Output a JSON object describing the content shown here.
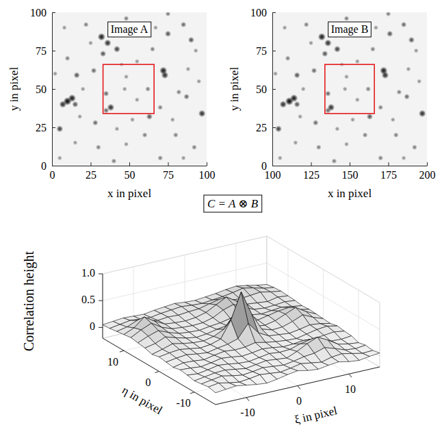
{
  "chart_data": [
    {
      "type": "image",
      "title": "Image A",
      "x_label": "x in pixel",
      "y_label": "y in pixel",
      "xlim": [
        0,
        100
      ],
      "ylim": [
        0,
        100
      ],
      "xticks": [
        0,
        25,
        50,
        75,
        100
      ],
      "yticks": [
        0,
        25,
        50,
        75,
        100
      ],
      "color": "#000000",
      "stars": {
        "x": [
          10,
          13,
          7,
          15,
          32,
          36,
          40,
          42,
          33,
          72,
          73,
          75,
          90,
          97,
          38,
          35,
          5,
          16,
          28,
          35,
          47,
          62,
          48,
          55,
          27,
          10,
          22,
          48,
          75,
          85,
          93,
          82,
          87,
          70,
          63,
          60,
          80,
          92,
          48,
          30,
          15,
          5,
          40,
          70,
          55,
          65,
          20,
          2,
          25,
          58,
          88,
          95,
          52,
          8,
          45,
          67,
          78,
          18,
          42,
          85
        ],
        "y": [
          42,
          44,
          40,
          40,
          84,
          80,
          86,
          76,
          73,
          62,
          59,
          86,
          82,
          34,
          38,
          36,
          24,
          59,
          28,
          47,
          50,
          50,
          58,
          43,
          62,
          70,
          92,
          96,
          99,
          92,
          75,
          48,
          45,
          38,
          32,
          20,
          20,
          12,
          14,
          12,
          15,
          5,
          3,
          5,
          68,
          76,
          50,
          60,
          80,
          88,
          63,
          55,
          30,
          90,
          66,
          90,
          30,
          32,
          24,
          5
        ],
        "brightness": [
          1,
          0.9,
          0.8,
          0.6,
          0.9,
          0.8,
          0.9,
          0.7,
          0.6,
          0.9,
          0.8,
          0.6,
          0.6,
          0.8,
          0.8,
          0.5,
          0.7,
          0.6,
          0.5,
          0.5,
          0.3,
          0.4,
          0.3,
          0.3,
          0.5,
          0.4,
          0.4,
          0.4,
          0.4,
          0.5,
          0.3,
          0.4,
          0.5,
          0.4,
          0.6,
          0.4,
          0.4,
          0.4,
          0.3,
          0.4,
          0.3,
          0.3,
          0.4,
          0.4,
          0.3,
          0.4,
          0.3,
          0.3,
          0.3,
          0.3,
          0.3,
          0.3,
          0.3,
          0.3,
          0.2,
          0.3,
          0.3,
          0.3,
          0.3,
          0.3
        ]
      },
      "box": {
        "x": [
          33,
          66
        ],
        "y": [
          34,
          66
        ],
        "color": "#e41a1c"
      }
    },
    {
      "type": "image",
      "title": "Image B",
      "x_label": "x in pixel",
      "y_label": "y in pixel",
      "xlim": [
        100,
        200
      ],
      "ylim": [
        0,
        100
      ],
      "xticks": [
        100,
        125,
        150,
        175,
        200
      ],
      "yticks": [
        0,
        25,
        50,
        75,
        100
      ],
      "color": "#000000",
      "stars": {
        "x": [
          111,
          114,
          107,
          116,
          132,
          136,
          141,
          142,
          134,
          172,
          173,
          176,
          190,
          197,
          138,
          136,
          104,
          116,
          128,
          136,
          147,
          162,
          148,
          155,
          127,
          110,
          122,
          148,
          175,
          185,
          193,
          182,
          187,
          170,
          163,
          160,
          180,
          192,
          148,
          130,
          115,
          105,
          140,
          170,
          155,
          165,
          120,
          102,
          125,
          158,
          188,
          195,
          152,
          108,
          145,
          167,
          178,
          118,
          142,
          185
        ],
        "y": [
          42,
          44,
          40,
          40,
          84,
          80,
          86,
          76,
          73,
          62,
          59,
          86,
          82,
          34,
          38,
          36,
          24,
          59,
          28,
          47,
          50,
          50,
          58,
          43,
          62,
          70,
          92,
          96,
          99,
          92,
          75,
          48,
          45,
          38,
          32,
          20,
          20,
          12,
          14,
          12,
          15,
          5,
          3,
          5,
          68,
          76,
          50,
          60,
          80,
          88,
          63,
          55,
          30,
          90,
          66,
          90,
          30,
          32,
          24,
          5
        ],
        "brightness": [
          1,
          0.9,
          0.8,
          0.6,
          0.9,
          0.8,
          0.9,
          0.7,
          0.6,
          0.9,
          0.8,
          0.6,
          0.6,
          0.8,
          0.8,
          0.5,
          0.7,
          0.6,
          0.5,
          0.5,
          0.3,
          0.4,
          0.3,
          0.3,
          0.5,
          0.4,
          0.4,
          0.4,
          0.4,
          0.5,
          0.3,
          0.4,
          0.5,
          0.4,
          0.6,
          0.4,
          0.4,
          0.4,
          0.3,
          0.4,
          0.3,
          0.3,
          0.4,
          0.4,
          0.3,
          0.4,
          0.3,
          0.3,
          0.3,
          0.3,
          0.3,
          0.3,
          0.3,
          0.3,
          0.2,
          0.3,
          0.3,
          0.3,
          0.3,
          0.3
        ]
      },
      "box": {
        "x": [
          134,
          166
        ],
        "y": [
          34,
          66
        ],
        "color": "#e41a1c"
      }
    },
    {
      "type": "surface",
      "title": "C = A ⊗ B",
      "x_label": "ξ in pixel",
      "y_label": "η in pixel",
      "z_label": "Correlation height",
      "xlim": [
        -16,
        16
      ],
      "ylim": [
        -16,
        16
      ],
      "zlim": [
        -0.2,
        1
      ],
      "xticks": [
        -10,
        0,
        10
      ],
      "yticks": [
        -10,
        0,
        10
      ],
      "zticks": [
        0,
        0.5,
        {
          "value": 1,
          "label": "1.0"
        }
      ],
      "grid": true,
      "x": [
        -16,
        -14,
        -12,
        -10,
        -8,
        -6,
        -4,
        -2,
        0,
        2,
        4,
        6,
        8,
        10,
        12,
        14,
        16
      ],
      "y": [
        -16,
        -14,
        -12,
        -10,
        -8,
        -6,
        -4,
        -2,
        0,
        2,
        4,
        6,
        8,
        10,
        12,
        14,
        16
      ],
      "z": [
        [
          0.02,
          0.04,
          0.06,
          0.03,
          0.0,
          -0.02,
          0.01,
          0.05,
          0.08,
          0.04,
          0.02,
          0.05,
          0.07,
          0.03,
          0.01,
          0.04,
          0.06
        ],
        [
          0.05,
          0.08,
          0.04,
          0.01,
          0.03,
          0.06,
          0.04,
          0.02,
          0.05,
          0.09,
          0.06,
          0.03,
          0.08,
          0.1,
          0.06,
          0.02,
          0.03
        ],
        [
          0.03,
          0.06,
          0.09,
          0.05,
          0.02,
          0.04,
          0.07,
          0.05,
          0.03,
          0.06,
          0.1,
          0.12,
          0.18,
          0.12,
          0.05,
          0.03,
          0.05
        ],
        [
          0.01,
          0.04,
          0.07,
          0.08,
          0.05,
          0.02,
          0.05,
          0.08,
          0.06,
          0.04,
          0.12,
          0.22,
          0.3,
          0.2,
          0.08,
          0.04,
          0.02
        ],
        [
          0.04,
          0.02,
          0.05,
          0.09,
          0.07,
          0.04,
          0.03,
          0.06,
          0.09,
          0.07,
          0.08,
          0.14,
          0.18,
          0.12,
          0.06,
          0.05,
          0.07
        ],
        [
          0.06,
          0.05,
          0.03,
          0.06,
          0.1,
          0.08,
          0.05,
          0.07,
          0.1,
          0.08,
          0.05,
          0.06,
          0.08,
          0.07,
          0.09,
          0.11,
          0.08
        ],
        [
          0.03,
          0.07,
          0.06,
          0.04,
          0.08,
          0.11,
          0.09,
          0.1,
          0.14,
          0.1,
          0.07,
          0.05,
          0.04,
          0.08,
          0.12,
          0.14,
          0.1
        ],
        [
          0.05,
          0.08,
          0.1,
          0.07,
          0.05,
          0.09,
          0.12,
          0.18,
          0.42,
          0.2,
          0.1,
          0.08,
          0.06,
          0.09,
          0.13,
          0.11,
          0.07
        ],
        [
          0.07,
          0.1,
          0.12,
          0.09,
          0.06,
          0.08,
          0.14,
          0.45,
          0.93,
          0.48,
          0.15,
          0.09,
          0.1,
          0.16,
          0.24,
          0.15,
          0.08
        ],
        [
          0.04,
          0.09,
          0.15,
          0.11,
          0.08,
          0.07,
          0.11,
          0.2,
          0.44,
          0.22,
          0.12,
          0.1,
          0.14,
          0.22,
          0.3,
          0.18,
          0.09
        ],
        [
          0.08,
          0.12,
          0.2,
          0.14,
          0.09,
          0.06,
          0.08,
          0.12,
          0.15,
          0.13,
          0.1,
          0.12,
          0.16,
          0.2,
          0.22,
          0.14,
          0.1
        ],
        [
          0.1,
          0.18,
          0.24,
          0.16,
          0.1,
          0.08,
          0.07,
          0.1,
          0.12,
          0.16,
          0.18,
          0.14,
          0.11,
          0.13,
          0.15,
          0.12,
          0.09
        ],
        [
          0.12,
          0.22,
          0.3,
          0.18,
          0.11,
          0.09,
          0.08,
          0.09,
          0.14,
          0.24,
          0.3,
          0.2,
          0.12,
          0.1,
          0.11,
          0.13,
          0.11
        ],
        [
          0.1,
          0.18,
          0.34,
          0.22,
          0.12,
          0.1,
          0.09,
          0.11,
          0.16,
          0.26,
          0.36,
          0.24,
          0.14,
          0.12,
          0.1,
          0.14,
          0.12
        ],
        [
          0.08,
          0.12,
          0.2,
          0.15,
          0.11,
          0.13,
          0.12,
          0.14,
          0.15,
          0.2,
          0.24,
          0.18,
          0.16,
          0.18,
          0.2,
          0.16,
          0.13
        ],
        [
          0.06,
          0.09,
          0.12,
          0.1,
          0.09,
          0.12,
          0.14,
          0.16,
          0.14,
          0.13,
          0.15,
          0.17,
          0.2,
          0.24,
          0.2,
          0.15,
          0.12
        ],
        [
          0.05,
          0.07,
          0.09,
          0.08,
          0.07,
          0.1,
          0.12,
          0.14,
          0.12,
          0.11,
          0.13,
          0.15,
          0.18,
          0.2,
          0.17,
          0.13,
          0.1
        ]
      ]
    }
  ]
}
